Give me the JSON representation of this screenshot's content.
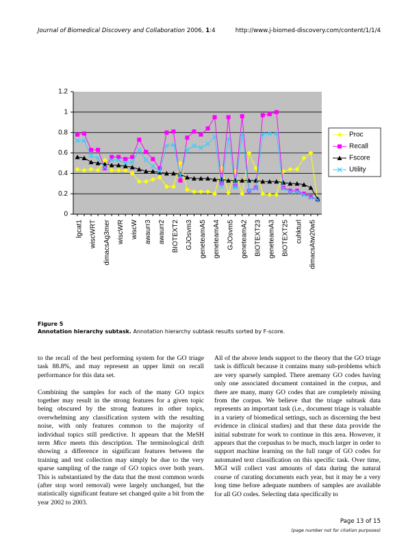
{
  "header": {
    "journal": "Journal of Biomedical Discovery and Collaboration",
    "citation": " 2006, ",
    "volume": "1",
    "article": ":4",
    "url": "http://www.j-biomed-discovery.com/content/1/1/4"
  },
  "chart_data": {
    "type": "line",
    "categories": [
      "lgcat1",
      null,
      "wiscWRT",
      null,
      "dimacsAg3mer",
      null,
      "wiscWR",
      null,
      "wiscW",
      null,
      "awaurr3",
      null,
      "awaurr2",
      null,
      "BIOTEXT2",
      null,
      "GJOsvm3",
      null,
      "geneteamA5",
      null,
      "geneteamA4",
      null,
      "GJOsvm5",
      null,
      "geneteamA2",
      null,
      "BIOTEXT23",
      null,
      "geneteamA3",
      null,
      "BIOTEXT25",
      null,
      "cuhkturl",
      null,
      "dimacsAtw20w5",
      null
    ],
    "series": [
      {
        "name": "Proc",
        "color": "#ffff00",
        "marker": "diamond",
        "values": [
          0.44,
          0.43,
          0.44,
          0.43,
          0.53,
          0.43,
          0.43,
          0.43,
          0.4,
          0.32,
          0.32,
          0.34,
          0.36,
          0.27,
          0.27,
          0.5,
          0.24,
          0.22,
          0.22,
          0.22,
          0.2,
          0.45,
          0.21,
          0.42,
          0.2,
          0.6,
          0.45,
          0.2,
          0.19,
          0.19,
          0.42,
          0.44,
          0.44,
          0.55,
          0.6,
          0.14
        ]
      },
      {
        "name": "Recall",
        "color": "#ff00ff",
        "marker": "square",
        "values": [
          0.78,
          0.79,
          0.63,
          0.63,
          0.45,
          0.56,
          0.56,
          0.54,
          0.56,
          0.73,
          0.61,
          0.54,
          0.45,
          0.8,
          0.81,
          0.33,
          0.75,
          0.81,
          0.78,
          0.84,
          0.95,
          0.3,
          0.95,
          0.28,
          0.96,
          0.23,
          0.26,
          0.97,
          0.98,
          1.0,
          0.26,
          0.23,
          0.23,
          0.2,
          0.17,
          0.14
        ]
      },
      {
        "name": "Fscore",
        "color": "#000000",
        "marker": "triangle",
        "values": [
          0.56,
          0.55,
          0.51,
          0.5,
          0.49,
          0.48,
          0.48,
          0.47,
          0.46,
          0.44,
          0.42,
          0.42,
          0.41,
          0.4,
          0.4,
          0.39,
          0.36,
          0.35,
          0.35,
          0.35,
          0.34,
          0.34,
          0.33,
          0.33,
          0.33,
          0.33,
          0.33,
          0.32,
          0.32,
          0.32,
          0.31,
          0.3,
          0.3,
          0.29,
          0.26,
          0.15
        ]
      },
      {
        "name": "Utility",
        "color": "#33ccff",
        "marker": "x",
        "values": [
          0.72,
          0.72,
          0.57,
          0.55,
          0.46,
          0.53,
          0.53,
          0.5,
          0.51,
          0.63,
          0.53,
          0.47,
          0.42,
          0.67,
          0.68,
          0.38,
          0.63,
          0.67,
          0.65,
          0.69,
          0.76,
          0.27,
          0.74,
          0.26,
          0.78,
          0.23,
          0.25,
          0.78,
          0.79,
          0.79,
          0.25,
          0.22,
          0.22,
          0.19,
          0.16,
          0.14
        ]
      }
    ],
    "ylim": [
      0,
      1.2
    ],
    "yticks": [
      0,
      0.2,
      0.4,
      0.6,
      0.8,
      1,
      1.2
    ],
    "grid": true,
    "plot_background": "#c0c0c0",
    "legend": "right"
  },
  "figure": {
    "label": "Figure 5",
    "title": "Annotation hierarchy subtask.",
    "caption": " Annotation hierarchy subtask results sorted by F-score."
  },
  "body": {
    "left": [
      [
        "to the recall of the best performing system for the GO triage task 88.8%, and may represent an upper limit on recall performance for this data set."
      ],
      [
        "Combining the samples for each of the many GO topics together may result in the strong features for a given topic being obscured by the strong features in other topics, overwhelming any classification system with the resulting noise, with only features common to the majority of individual topics still predictive. It appears that the MeSH term ",
        "Mice",
        " meets this description. The terminological drift showing a difference in significant features between the training and test collection may simply be due to the very sparse sampling of the range of GO topics over both years. This is substantiated by the data that the most common words (after stop word removal) were largely unchanged, but the statistically significant feature set changed quite a bit from the year 2002 to 2003."
      ]
    ],
    "right": [
      [
        "All of the above lends support to the theory that the GO triage task is difficult because it contains many sub-problems which are very sparsely sampled. There aremany GO codes having only one associated document contained in the corpus, and there are many, many GO codes that are completely missing from the corpus. We believe that the triage subtask data represents an important task (i.e., document triage is valuable in a variety of biomedical settings, such as discerning the best evidence in clinical studies) and that these data provide the initial substrate for work to continue in this area. However, it appears that the corpushas to be much, much larger in order to support machine learning on the full range of GO codes for automated text classification on this specific task. Over time, MGI will collect vast amounts of data during the natural course of curating documents each year, but it may be a very long time before adequate numbers of samples are available for all GO codes. Selecting data specifically to"
      ]
    ]
  },
  "footer": {
    "page": "Page 13 of 15",
    "note": "(page number not for citation purposes)"
  }
}
